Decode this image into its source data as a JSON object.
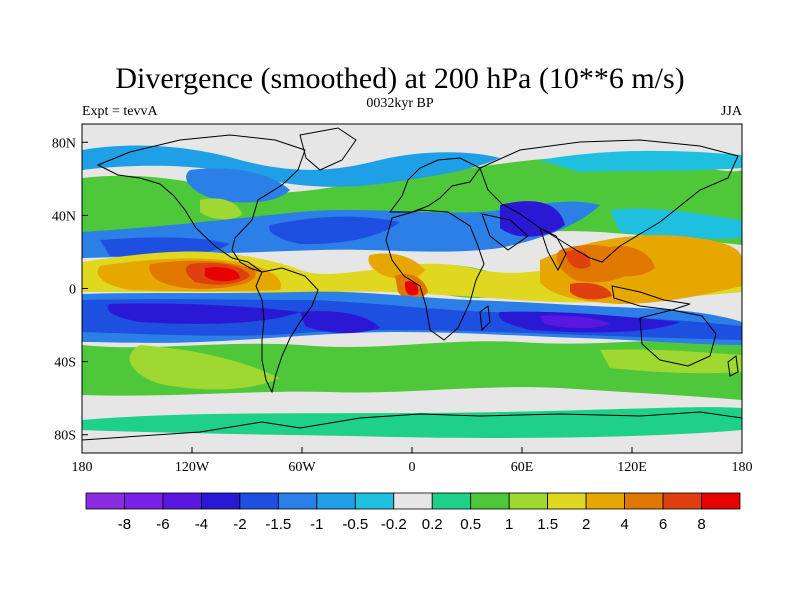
{
  "title": "Divergence (smoothed) at 200 hPa (10**6 m/s)",
  "left_string": "Expt = tevvA",
  "center_string": "0032kyr BP",
  "right_string": "JJA",
  "map": {
    "projection": "cylindrical-equidistant",
    "lon_range": [
      -180,
      180
    ],
    "lat_range": [
      -90,
      90
    ],
    "land_color": "#e6e6e6",
    "coastline_color": "#000000"
  },
  "axes": {
    "x_ticks": [
      {
        "lon": -180,
        "label": "180"
      },
      {
        "lon": -120,
        "label": "120W"
      },
      {
        "lon": -60,
        "label": "60W"
      },
      {
        "lon": 0,
        "label": "0"
      },
      {
        "lon": 60,
        "label": "60E"
      },
      {
        "lon": 120,
        "label": "120E"
      },
      {
        "lon": 180,
        "label": "180"
      }
    ],
    "y_ticks": [
      {
        "lat": 80,
        "label": "80N"
      },
      {
        "lat": 40,
        "label": "40N"
      },
      {
        "lat": 0,
        "label": "0"
      },
      {
        "lat": -40,
        "label": "40S"
      },
      {
        "lat": -80,
        "label": "80S"
      }
    ]
  },
  "colorbar": {
    "colors": [
      "#8a2be2",
      "#7a1fe6",
      "#5a17e0",
      "#2a18d4",
      "#1d4fe0",
      "#2b7fe6",
      "#1e9fe6",
      "#1fbfe0",
      "#e6e6e6",
      "#1fd08a",
      "#4ec83a",
      "#9ed830",
      "#e0d820",
      "#e6a800",
      "#e07800",
      "#e04010",
      "#e60000"
    ],
    "labels": [
      "-8",
      "-6",
      "-4",
      "-2",
      "-1.5",
      "-1",
      "-0.5",
      "-0.2",
      "0.2",
      "0.5",
      "1",
      "1.5",
      "2",
      "4",
      "6",
      "8"
    ]
  },
  "chart_data": {
    "type": "heatmap",
    "title": "Divergence (smoothed) at 200 hPa (10**6 m/s)",
    "variable": "200 hPa divergence (smoothed)",
    "units": "10**6 m/s",
    "season": "JJA",
    "period": "0032kyr BP",
    "experiment": "tevvA",
    "levels": [
      -8,
      -6,
      -4,
      -2,
      -1.5,
      -1,
      -0.5,
      -0.2,
      0.2,
      0.5,
      1,
      1.5,
      2,
      4,
      6,
      8
    ],
    "features": [
      {
        "region": "eastern tropical Pacific",
        "lon": -100,
        "lat": 5,
        "value": 8
      },
      {
        "region": "tropical Atlantic / Amazon",
        "lon": -50,
        "lat": 5,
        "value": 2
      },
      {
        "region": "equatorial Africa",
        "lon": 0,
        "lat": 2,
        "value": 6
      },
      {
        "region": "Bay of Bengal",
        "lon": 90,
        "lat": 15,
        "value": 6
      },
      {
        "region": "western Pacific warm pool",
        "lon": 130,
        "lat": 15,
        "value": 4
      },
      {
        "region": "southern subtropical band",
        "lon": -80,
        "lat": -15,
        "value": -6
      },
      {
        "region": "southern Indian Ocean",
        "lon": 70,
        "lat": -15,
        "value": -4
      },
      {
        "region": "North Atlantic",
        "lon": -40,
        "lat": 35,
        "value": -2
      },
      {
        "region": "North Pacific",
        "lon": -150,
        "lat": 25,
        "value": -2
      },
      {
        "region": "southern midlatitudes",
        "lon": 0,
        "lat": -45,
        "value": 1
      },
      {
        "region": "Southern Ocean",
        "lon": 60,
        "lat": -65,
        "value": 0.5
      }
    ]
  }
}
